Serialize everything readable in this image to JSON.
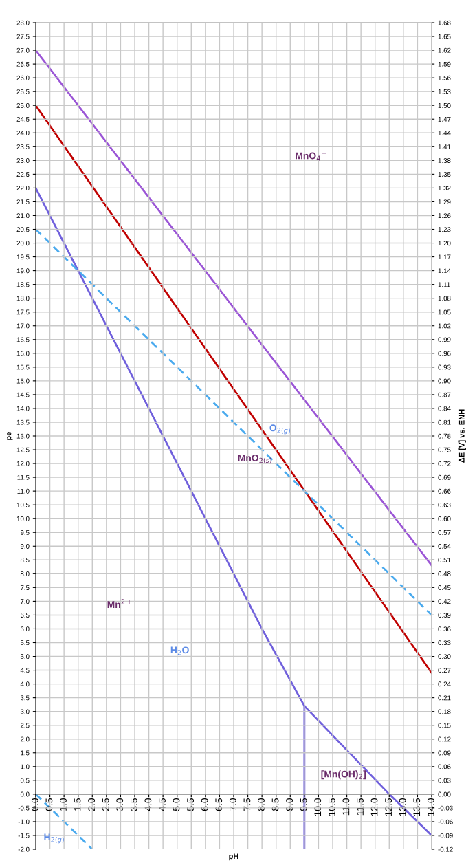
{
  "chart_data": {
    "type": "line",
    "xlabel": "pH",
    "ylabel": "pe",
    "y2label": "ΔE [V] vs. ENH",
    "xlim": [
      0,
      14
    ],
    "ylim": [
      -2,
      28
    ],
    "y2lim": [
      -0.12,
      1.68
    ],
    "xticks": [
      {
        "value": 0,
        "label": "0.0"
      },
      0.5,
      {
        "value": 1,
        "label": "1.0"
      },
      1.5,
      {
        "value": 2,
        "label": "2.0"
      },
      2.5,
      {
        "value": 3,
        "label": "3.0"
      },
      3.5,
      {
        "value": 4,
        "label": "4.0"
      },
      4.5,
      {
        "value": 5,
        "label": "5.0"
      },
      5.5,
      {
        "value": 6,
        "label": "6.0"
      },
      6.5,
      {
        "value": 7,
        "label": "7.0"
      },
      7.5,
      {
        "value": 8,
        "label": "8.0"
      },
      8.5,
      {
        "value": 9,
        "label": "9.0"
      },
      9.5,
      {
        "value": 10,
        "label": "10.0"
      },
      10.5,
      {
        "value": 11,
        "label": "11.0"
      },
      11.5,
      {
        "value": 12,
        "label": "12.0"
      },
      12.5,
      {
        "value": 13,
        "label": "13.0"
      },
      13.5,
      {
        "value": 14,
        "label": "14.0"
      }
    ],
    "yticks": [
      {
        "value": -2,
        "label": "-2.0"
      },
      -1.5,
      {
        "value": -1,
        "label": "-1.0"
      },
      -0.5,
      {
        "value": 0,
        "label": "0.0"
      },
      0.5,
      {
        "value": 1,
        "label": "1.0"
      },
      1.5,
      {
        "value": 2,
        "label": "2.0"
      },
      2.5,
      {
        "value": 3,
        "label": "3.0"
      },
      3.5,
      {
        "value": 4,
        "label": "4.0"
      },
      4.5,
      {
        "value": 5,
        "label": "5.0"
      },
      5.5,
      {
        "value": 6,
        "label": "6.0"
      },
      6.5,
      {
        "value": 7,
        "label": "7.0"
      },
      7.5,
      {
        "value": 8,
        "label": "8.0"
      },
      8.5,
      {
        "value": 9,
        "label": "9.0"
      },
      9.5,
      {
        "value": 10,
        "label": "10.0"
      },
      10.5,
      {
        "value": 11,
        "label": "11.0"
      },
      11.5,
      {
        "value": 12,
        "label": "12.0"
      },
      12.5,
      {
        "value": 13,
        "label": "13.0"
      },
      13.5,
      {
        "value": 14,
        "label": "14.0"
      },
      14.5,
      {
        "value": 15,
        "label": "15.0"
      },
      15.5,
      {
        "value": 16,
        "label": "16.0"
      },
      16.5,
      {
        "value": 17,
        "label": "17.0"
      },
      17.5,
      {
        "value": 18,
        "label": "18.0"
      },
      18.5,
      {
        "value": 19,
        "label": "19.0"
      },
      19.5,
      {
        "value": 20,
        "label": "20.0"
      },
      20.5,
      {
        "value": 21,
        "label": "21.0"
      },
      21.5,
      {
        "value": 22,
        "label": "22.0"
      },
      22.5,
      {
        "value": 23,
        "label": "23.0"
      },
      23.5,
      {
        "value": 24,
        "label": "24.0"
      },
      24.5,
      {
        "value": 25,
        "label": "25.0"
      },
      25.5,
      {
        "value": 26,
        "label": "26.0"
      },
      26.5,
      {
        "value": 27,
        "label": "27.0"
      },
      27.5,
      {
        "value": 28,
        "label": "28.0"
      }
    ],
    "y2ticks": [
      -0.12,
      -0.09,
      -0.06,
      -0.03,
      {
        "value": 0,
        "label": "0.00"
      },
      0.03,
      0.06,
      0.09,
      0.12,
      0.15,
      0.18,
      0.21,
      0.24,
      0.27,
      {
        "value": 0.3,
        "label": "0.30"
      },
      0.33,
      0.36,
      0.39,
      0.42,
      0.45,
      0.48,
      0.51,
      0.54,
      0.57,
      {
        "value": 0.6,
        "label": "0.60"
      },
      0.63,
      0.66,
      0.69,
      0.72,
      0.75,
      0.78,
      0.81,
      0.84,
      0.87,
      {
        "value": 0.9,
        "label": "0.90"
      },
      0.93,
      0.96,
      0.99,
      1.02,
      1.05,
      1.08,
      1.11,
      1.14,
      1.17,
      {
        "value": 1.2,
        "label": "1.20"
      },
      1.23,
      1.26,
      1.29,
      1.32,
      1.35,
      1.38,
      1.41,
      1.44,
      1.47,
      {
        "value": 1.5,
        "label": "1.50"
      },
      1.53,
      1.56,
      1.59,
      1.62,
      1.65,
      1.68
    ],
    "grid": true,
    "marker": "none",
    "series": [
      {
        "color": "#9b55d6",
        "x": [
          0,
          14
        ],
        "values": [
          27.0,
          8.3
        ]
      },
      {
        "color": "#c00000",
        "x": [
          0,
          14
        ],
        "values": [
          25.0,
          4.4
        ]
      },
      {
        "color": "#7060dc",
        "x": [
          0,
          8,
          9.5,
          12.5,
          14
        ],
        "values": [
          22.0,
          6.0,
          3.2,
          0.0,
          -1.5
        ]
      },
      {
        "color": "#7060dc",
        "x": [
          9.5,
          9.5
        ],
        "values": [
          -2.0,
          3.2
        ]
      },
      {
        "color": "#4aaaee",
        "x": [
          0,
          14
        ],
        "values": [
          20.5,
          6.5
        ],
        "line_style": "dashed"
      },
      {
        "color": "#4aaaee",
        "x": [
          0,
          2
        ],
        "values": [
          0.0,
          -2.0
        ],
        "line_style": "dashed"
      }
    ],
    "annotations": [
      "MnO$_{4}$$^{−}$",
      "MnO$_{2(s)}$",
      "O$_{2(g)}$",
      "Mn$^{2+}$",
      "H$_{2}$O",
      "[Mn(OH)$_{2}$]",
      "H$_{2(g)}$"
    ]
  }
}
